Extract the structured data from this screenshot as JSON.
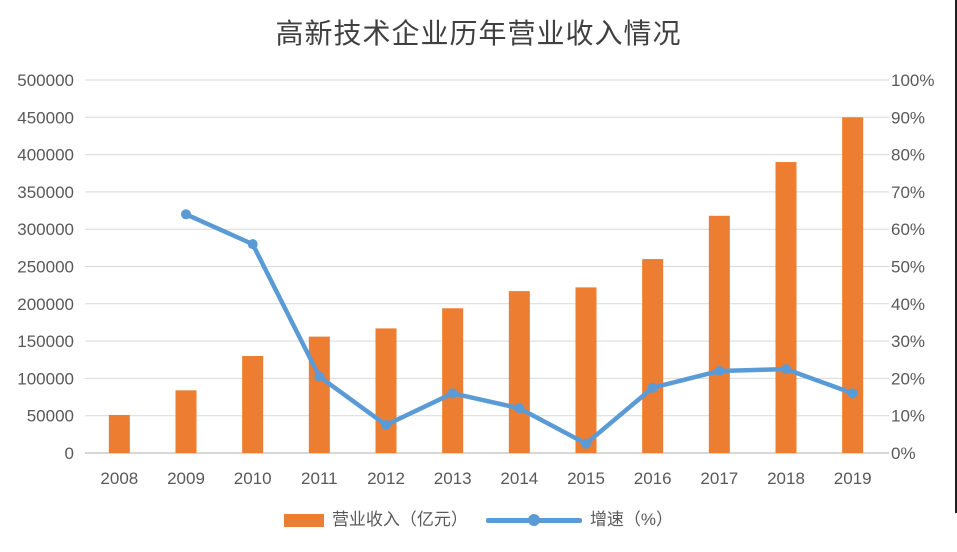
{
  "chart": {
    "title": "高新技术企业历年营业收入情况",
    "legend_labels": {
      "revenue": "营业收入（亿元）",
      "growth": "增速（%）"
    }
  },
  "colors": {
    "bar": "#ED7D31",
    "line": "#5B9BD5",
    "grid": "#D9D9D9",
    "axis_line": "#BFBFBF",
    "tick_text": "#595959",
    "title_text": "#404040",
    "frame_edge": "#1F1F1F"
  },
  "chart_data": {
    "type": "combo-bar-line",
    "title": "高新技术企业历年营业收入情况",
    "categories": [
      "2008",
      "2009",
      "2010",
      "2011",
      "2012",
      "2013",
      "2014",
      "2015",
      "2016",
      "2017",
      "2018",
      "2019"
    ],
    "series": [
      {
        "name": "营业收入（亿元）",
        "type": "bar",
        "axis": "left",
        "values": [
          51000,
          84000,
          130000,
          156000,
          167000,
          194000,
          217000,
          222000,
          260000,
          318000,
          390000,
          450000
        ]
      },
      {
        "name": "增速（%）",
        "type": "line",
        "axis": "right",
        "unit": "%",
        "values": [
          null,
          64,
          56,
          20.5,
          7.5,
          16,
          12,
          2.5,
          17.5,
          22,
          22.5,
          16
        ]
      }
    ],
    "left_axis": {
      "min": 0,
      "max": 500000,
      "step": 50000,
      "tick_labels": [
        "0",
        "50000",
        "100000",
        "150000",
        "200000",
        "250000",
        "300000",
        "350000",
        "400000",
        "450000",
        "500000"
      ]
    },
    "right_axis": {
      "min": 0,
      "max": 100,
      "step": 10,
      "tick_labels": [
        "0%",
        "10%",
        "20%",
        "30%",
        "40%",
        "50%",
        "60%",
        "70%",
        "80%",
        "90%",
        "100%"
      ]
    },
    "grid": true,
    "legend_position": "bottom"
  }
}
